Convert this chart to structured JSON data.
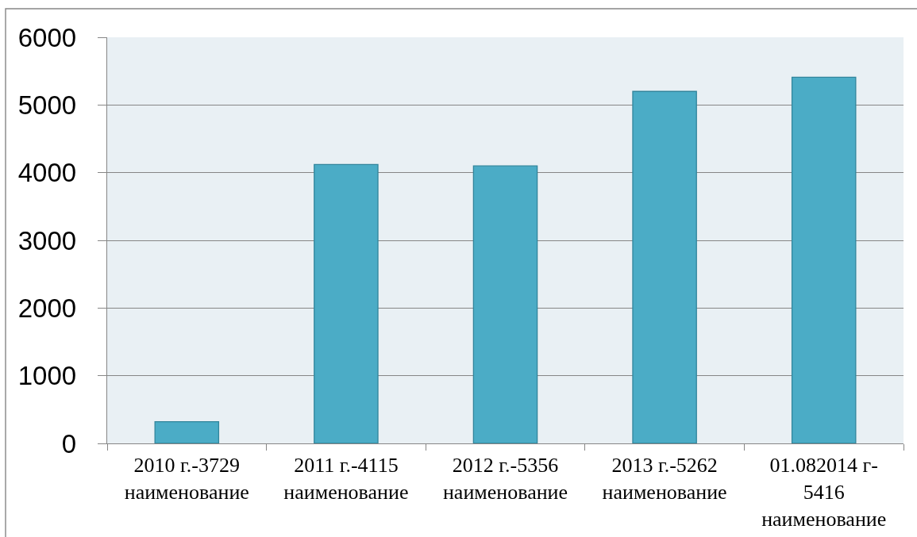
{
  "chart_data": {
    "type": "bar",
    "categories": [
      "2010 г.-3729 наименование",
      "2011 г.-4115 наименование",
      "2012 г.-5356 наименование",
      "2013 г.-5262 наименование",
      "01.082014 г-5416 наименование"
    ],
    "values": [
      320,
      4120,
      4100,
      5200,
      5410
    ],
    "color": "#4bacc6",
    "ylim": [
      0,
      6000
    ],
    "yticks": [
      0,
      1000,
      2000,
      3000,
      4000,
      5000,
      6000
    ],
    "grid": "y"
  }
}
